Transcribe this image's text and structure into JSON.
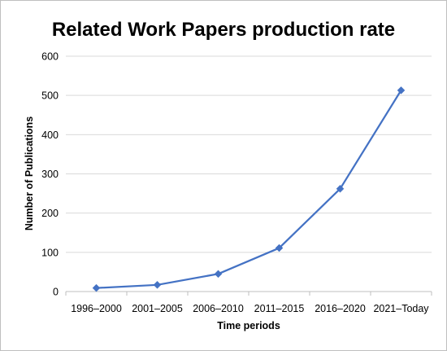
{
  "chart_data": {
    "type": "line",
    "title": "Related Work Papers production rate",
    "xlabel": "Time periods",
    "ylabel": "Number of Publications",
    "categories": [
      "1996–2000",
      "2001–2005",
      "2006–2010",
      "2011–2015",
      "2016–2020",
      "2021–Today"
    ],
    "series": [
      {
        "values": [
          9,
          17,
          45,
          111,
          262,
          513
        ],
        "color": "#4472C4",
        "marker": "diamond"
      }
    ],
    "ylim": [
      0,
      600
    ],
    "yticks": [
      0,
      100,
      200,
      300,
      400,
      500,
      600
    ],
    "grid": true,
    "legend": "none"
  }
}
